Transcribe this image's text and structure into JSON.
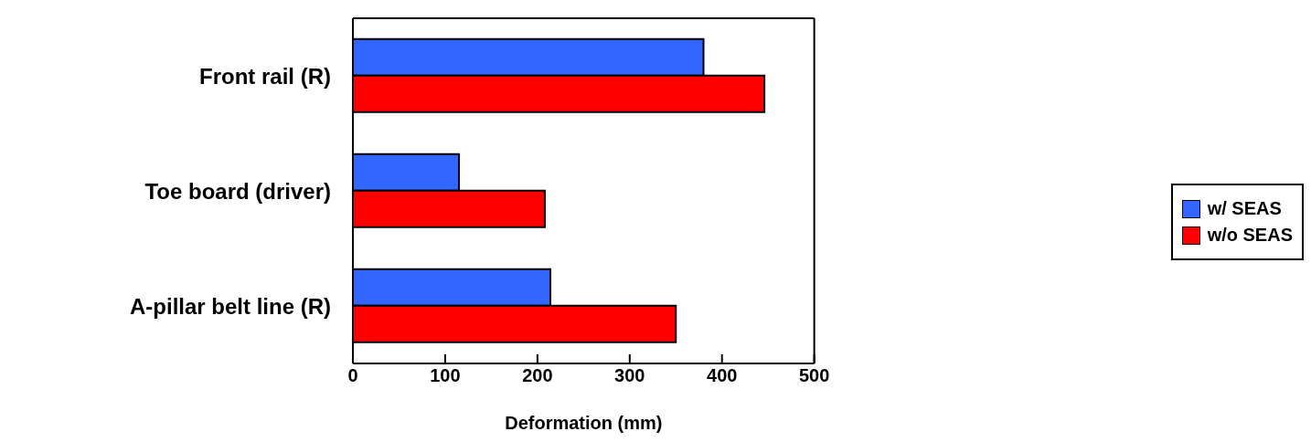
{
  "chart_data": {
    "type": "bar",
    "orientation": "horizontal",
    "xlabel": "Deformation (mm)",
    "categories": [
      "Front rail (R)",
      "Toe board (driver)",
      "A-pillar belt line (R)"
    ],
    "series": [
      {
        "name": "w/ SEAS",
        "color": "#3366ff",
        "values": [
          380,
          115,
          214
        ]
      },
      {
        "name": "w/o SEAS",
        "color": "#ff0000",
        "values": [
          446,
          208,
          350
        ]
      }
    ],
    "xlim": [
      0,
      500
    ],
    "xticks": [
      0,
      100,
      200,
      300,
      400,
      500
    ],
    "grid": false,
    "legend": "right"
  }
}
